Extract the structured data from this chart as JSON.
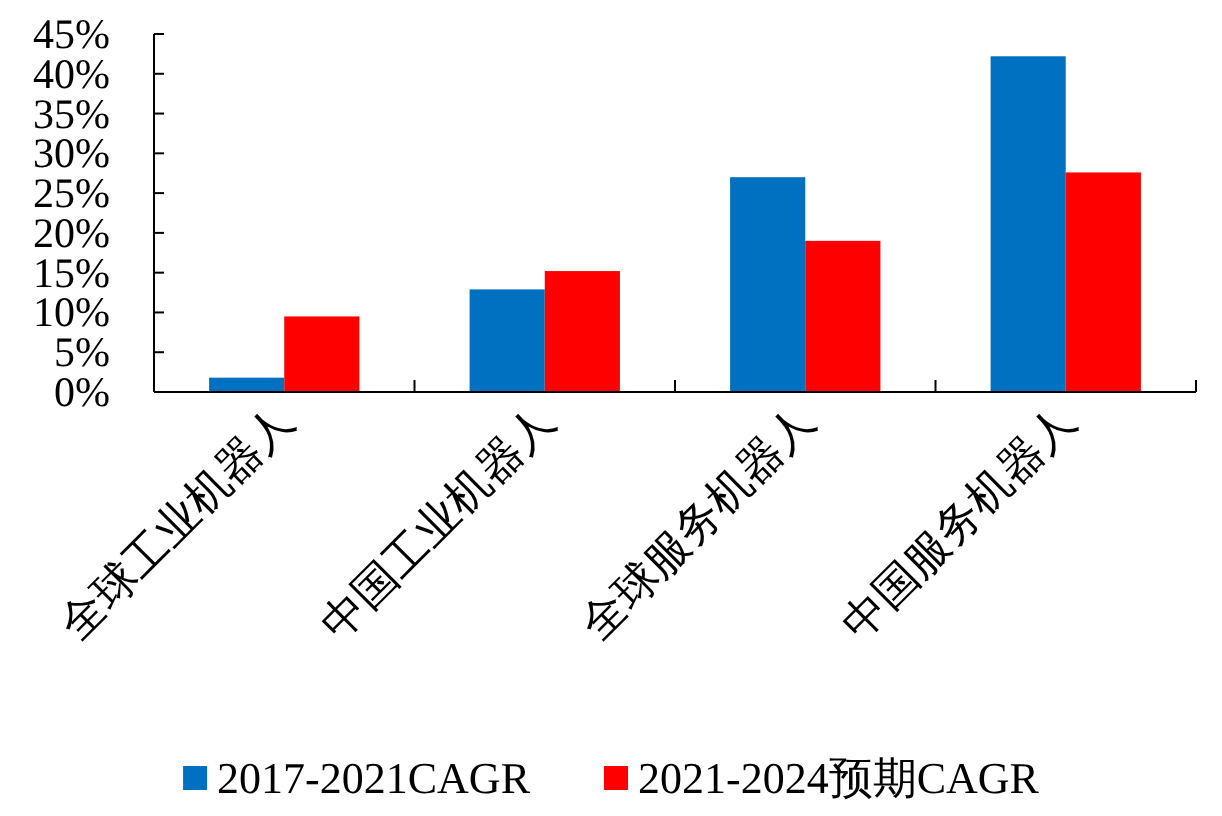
{
  "chart_data": {
    "type": "bar",
    "categories": [
      "全球工业机器人",
      "中国工业机器人",
      "全球服务机器人",
      "中国服务机器人"
    ],
    "series": [
      {
        "name": "2017-2021CAGR",
        "color": "#0070c0",
        "values": [
          1.8,
          12.9,
          27.0,
          42.2
        ]
      },
      {
        "name": "2021-2024预期CAGR",
        "color": "#ff0000",
        "values": [
          9.5,
          15.2,
          19.0,
          27.6
        ]
      }
    ],
    "ylim": [
      0,
      45
    ],
    "yticks": [
      {
        "value": 0,
        "label": "0%"
      },
      {
        "value": 5,
        "label": "5%"
      },
      {
        "value": 10,
        "label": "10%"
      },
      {
        "value": 15,
        "label": "15%"
      },
      {
        "value": 20,
        "label": "20%"
      },
      {
        "value": 25,
        "label": "25%"
      },
      {
        "value": 30,
        "label": "30%"
      },
      {
        "value": 35,
        "label": "35%"
      },
      {
        "value": 40,
        "label": "40%"
      },
      {
        "value": 45,
        "label": "45%"
      }
    ],
    "grid": false,
    "legend": "bottom"
  }
}
